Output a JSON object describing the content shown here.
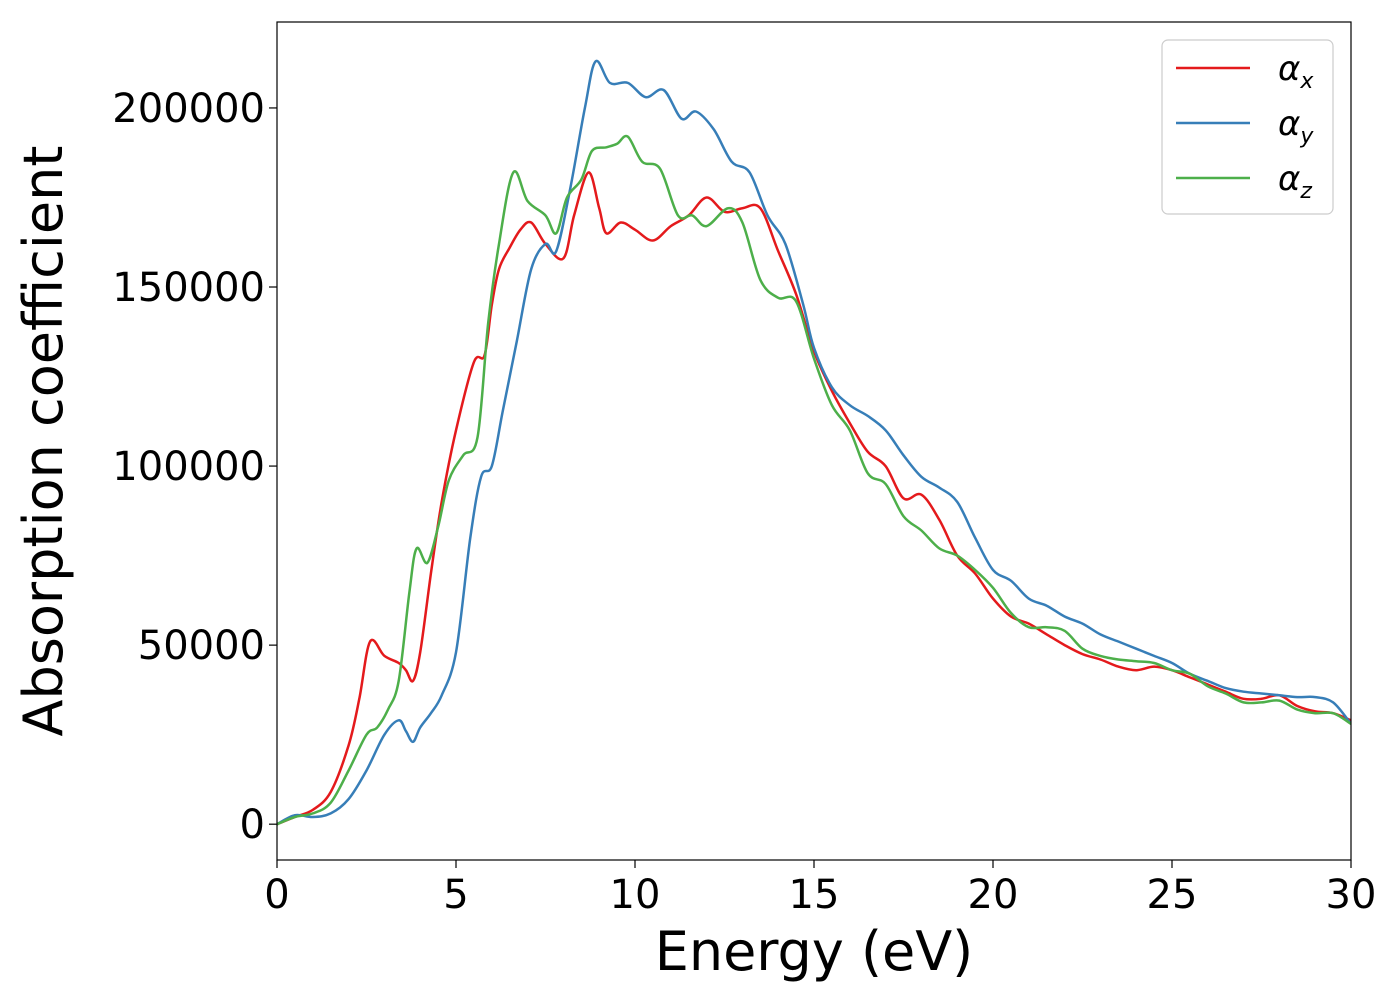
{
  "chart_data": {
    "type": "line",
    "title": "",
    "xlabel": "Energy (eV)",
    "ylabel": "Absorption coefficient",
    "xlim": [
      0,
      30
    ],
    "ylim": [
      -10000,
      224000
    ],
    "xticks": [
      0,
      5,
      10,
      15,
      20,
      25,
      30
    ],
    "yticks": [
      0,
      50000,
      100000,
      150000,
      200000
    ],
    "xtick_labels": [
      "0",
      "5",
      "10",
      "15",
      "20",
      "25",
      "30"
    ],
    "ytick_labels": [
      "0",
      "50000",
      "100000",
      "150000",
      "200000"
    ],
    "grid": false,
    "legend_position": "top-right",
    "series": [
      {
        "name": "α",
        "subscript": "x",
        "color": "#e41a1c",
        "points": [
          [
            0,
            0
          ],
          [
            0.5,
            2000
          ],
          [
            1,
            4000
          ],
          [
            1.5,
            9000
          ],
          [
            2,
            22000
          ],
          [
            2.3,
            35000
          ],
          [
            2.6,
            51000
          ],
          [
            3,
            47000
          ],
          [
            3.4,
            45000
          ],
          [
            3.6,
            43000
          ],
          [
            3.8,
            40000
          ],
          [
            4,
            48000
          ],
          [
            4.3,
            70000
          ],
          [
            4.6,
            90000
          ],
          [
            5,
            110000
          ],
          [
            5.5,
            129000
          ],
          [
            5.8,
            131000
          ],
          [
            6,
            145000
          ],
          [
            6.2,
            155000
          ],
          [
            6.5,
            161000
          ],
          [
            6.8,
            166000
          ],
          [
            7.1,
            168000
          ],
          [
            7.5,
            162000
          ],
          [
            8,
            158000
          ],
          [
            8.3,
            170000
          ],
          [
            8.7,
            182000
          ],
          [
            9,
            172000
          ],
          [
            9.2,
            165000
          ],
          [
            9.6,
            168000
          ],
          [
            10,
            166000
          ],
          [
            10.5,
            163000
          ],
          [
            11,
            167000
          ],
          [
            11.5,
            170000
          ],
          [
            12,
            175000
          ],
          [
            12.5,
            171000
          ],
          [
            13,
            172000
          ],
          [
            13.5,
            172000
          ],
          [
            14,
            160000
          ],
          [
            14.5,
            148000
          ],
          [
            15,
            132000
          ],
          [
            15.5,
            121000
          ],
          [
            16,
            112000
          ],
          [
            16.5,
            104000
          ],
          [
            17,
            100000
          ],
          [
            17.5,
            91000
          ],
          [
            18,
            92000
          ],
          [
            18.5,
            85000
          ],
          [
            19,
            75000
          ],
          [
            19.5,
            70000
          ],
          [
            20,
            63000
          ],
          [
            20.5,
            58000
          ],
          [
            21,
            56000
          ],
          [
            21.5,
            53000
          ],
          [
            22,
            50000
          ],
          [
            22.5,
            47500
          ],
          [
            23,
            46000
          ],
          [
            23.5,
            44000
          ],
          [
            24,
            43000
          ],
          [
            24.5,
            44000
          ],
          [
            25,
            43000
          ],
          [
            25.5,
            41000
          ],
          [
            26,
            39000
          ],
          [
            26.5,
            37000
          ],
          [
            27,
            35000
          ],
          [
            27.5,
            35000
          ],
          [
            28,
            36000
          ],
          [
            28.5,
            33000
          ],
          [
            29,
            31500
          ],
          [
            29.5,
            31000
          ],
          [
            30,
            29000
          ]
        ]
      },
      {
        "name": "α",
        "subscript": "y",
        "color": "#377eb8",
        "points": [
          [
            0,
            0
          ],
          [
            0.5,
            2500
          ],
          [
            1,
            2000
          ],
          [
            1.5,
            3000
          ],
          [
            2,
            7000
          ],
          [
            2.5,
            15000
          ],
          [
            3,
            25000
          ],
          [
            3.4,
            29000
          ],
          [
            3.6,
            26000
          ],
          [
            3.8,
            23000
          ],
          [
            4,
            27000
          ],
          [
            4.3,
            31000
          ],
          [
            4.6,
            36000
          ],
          [
            5,
            48000
          ],
          [
            5.4,
            80000
          ],
          [
            5.7,
            97000
          ],
          [
            6,
            100000
          ],
          [
            6.3,
            115000
          ],
          [
            6.7,
            135000
          ],
          [
            7.1,
            155000
          ],
          [
            7.5,
            162000
          ],
          [
            7.8,
            160000
          ],
          [
            8.2,
            178000
          ],
          [
            8.6,
            200000
          ],
          [
            8.9,
            213000
          ],
          [
            9.3,
            207000
          ],
          [
            9.8,
            207000
          ],
          [
            10.3,
            203000
          ],
          [
            10.8,
            205000
          ],
          [
            11.3,
            197000
          ],
          [
            11.7,
            199000
          ],
          [
            12.2,
            194000
          ],
          [
            12.7,
            185000
          ],
          [
            13.2,
            182000
          ],
          [
            13.7,
            170000
          ],
          [
            14.2,
            162000
          ],
          [
            14.7,
            145000
          ],
          [
            15,
            133000
          ],
          [
            15.5,
            122000
          ],
          [
            16,
            117000
          ],
          [
            16.5,
            114000
          ],
          [
            17,
            110000
          ],
          [
            17.5,
            103000
          ],
          [
            18,
            97000
          ],
          [
            18.5,
            94000
          ],
          [
            19,
            90000
          ],
          [
            19.5,
            80000
          ],
          [
            20,
            71000
          ],
          [
            20.5,
            68000
          ],
          [
            21,
            63000
          ],
          [
            21.5,
            61000
          ],
          [
            22,
            58000
          ],
          [
            22.5,
            56000
          ],
          [
            23,
            53000
          ],
          [
            23.5,
            51000
          ],
          [
            24,
            49000
          ],
          [
            24.5,
            47000
          ],
          [
            25,
            45000
          ],
          [
            25.5,
            42000
          ],
          [
            26,
            40000
          ],
          [
            26.5,
            38000
          ],
          [
            27,
            37000
          ],
          [
            27.5,
            36500
          ],
          [
            28,
            36000
          ],
          [
            28.5,
            35500
          ],
          [
            29,
            35500
          ],
          [
            29.5,
            34000
          ],
          [
            30,
            28000
          ]
        ]
      },
      {
        "name": "α",
        "subscript": "z",
        "color": "#4daf4a",
        "points": [
          [
            0,
            0
          ],
          [
            0.5,
            2000
          ],
          [
            1,
            3000
          ],
          [
            1.5,
            6000
          ],
          [
            2,
            15000
          ],
          [
            2.5,
            25000
          ],
          [
            2.8,
            27000
          ],
          [
            3.1,
            32000
          ],
          [
            3.4,
            40000
          ],
          [
            3.7,
            65000
          ],
          [
            3.9,
            77000
          ],
          [
            4.2,
            73000
          ],
          [
            4.5,
            83000
          ],
          [
            4.8,
            96000
          ],
          [
            5.2,
            103000
          ],
          [
            5.6,
            108000
          ],
          [
            5.9,
            140000
          ],
          [
            6.2,
            162000
          ],
          [
            6.6,
            182000
          ],
          [
            7,
            174000
          ],
          [
            7.5,
            170000
          ],
          [
            7.8,
            165000
          ],
          [
            8.1,
            175000
          ],
          [
            8.5,
            180000
          ],
          [
            8.8,
            188000
          ],
          [
            9.2,
            189000
          ],
          [
            9.5,
            190000
          ],
          [
            9.8,
            192000
          ],
          [
            10.2,
            185000
          ],
          [
            10.7,
            183000
          ],
          [
            11.2,
            170000
          ],
          [
            11.6,
            170000
          ],
          [
            12,
            167000
          ],
          [
            12.6,
            172000
          ],
          [
            13,
            168000
          ],
          [
            13.5,
            152000
          ],
          [
            14,
            147000
          ],
          [
            14.5,
            146000
          ],
          [
            15,
            130000
          ],
          [
            15.5,
            117000
          ],
          [
            16,
            110000
          ],
          [
            16.5,
            98000
          ],
          [
            17,
            95000
          ],
          [
            17.5,
            86000
          ],
          [
            18,
            82000
          ],
          [
            18.5,
            77000
          ],
          [
            19,
            75000
          ],
          [
            19.5,
            71000
          ],
          [
            20,
            66000
          ],
          [
            20.5,
            59000
          ],
          [
            21,
            55000
          ],
          [
            21.5,
            55000
          ],
          [
            22,
            54000
          ],
          [
            22.5,
            49000
          ],
          [
            23,
            47000
          ],
          [
            23.5,
            46000
          ],
          [
            24,
            45500
          ],
          [
            24.5,
            45000
          ],
          [
            25,
            43000
          ],
          [
            25.5,
            42000
          ],
          [
            26,
            38500
          ],
          [
            26.5,
            36500
          ],
          [
            27,
            34000
          ],
          [
            27.5,
            34000
          ],
          [
            28,
            34500
          ],
          [
            28.5,
            32000
          ],
          [
            29,
            31000
          ],
          [
            29.5,
            31000
          ],
          [
            30,
            28000
          ]
        ]
      }
    ]
  }
}
